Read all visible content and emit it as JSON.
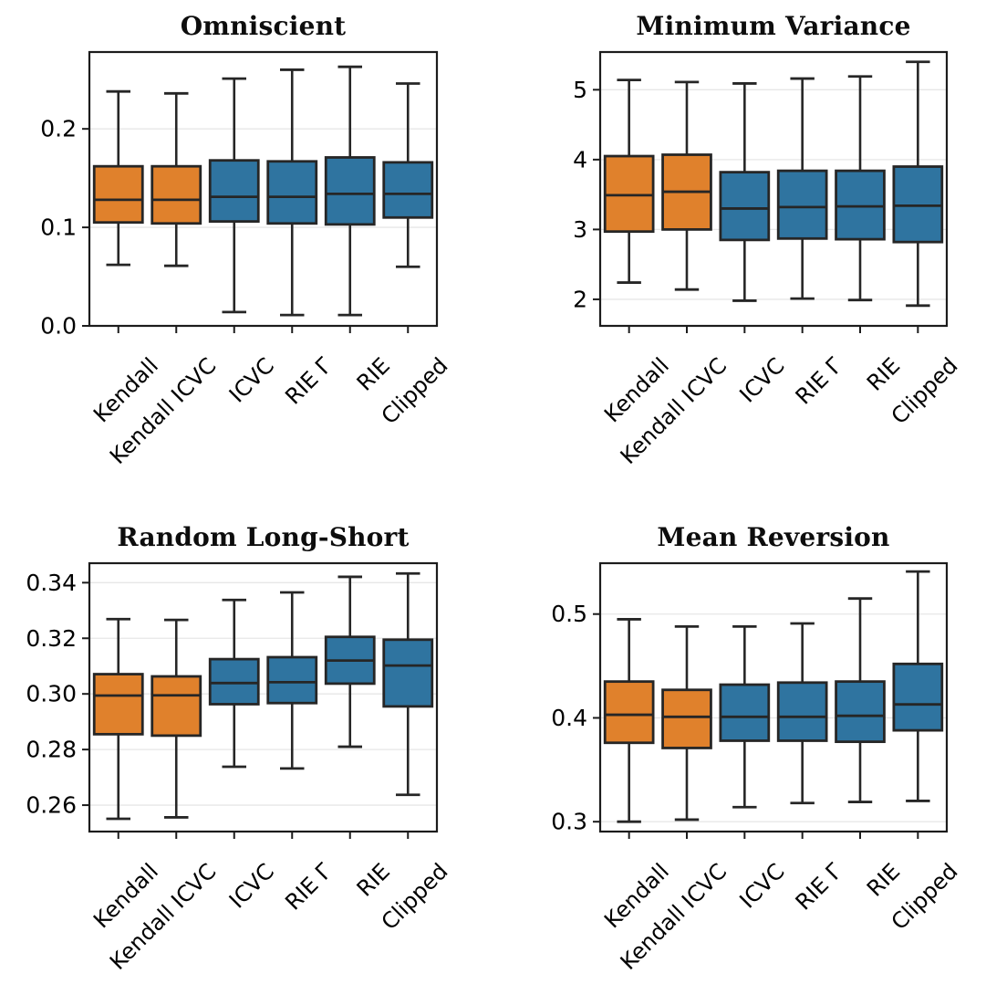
{
  "figure": {
    "background": "#ffffff",
    "kind": "2x2 grid of box plots"
  },
  "styles": {
    "orange": "#E0812C",
    "blue": "#2F74A0",
    "box_edge": "#262626",
    "grid_color": "#E7E7E7",
    "spine_color": "#1C1C1C",
    "tick_color": "#1C1C1C",
    "text_color": "#000000",
    "title_color": "#0D0D0D"
  },
  "categories": [
    "Kendall",
    "Kendall ICVC",
    "ICVC",
    "RIE Γ",
    "RIE",
    "Clipped"
  ],
  "chart_data": [
    {
      "type": "box",
      "title": "Omniscient",
      "xlabel": "",
      "ylabel": "",
      "grid": true,
      "legend": "none",
      "ylim": [
        0.0,
        0.278
      ],
      "yticks": [
        0.0,
        0.1,
        0.2
      ],
      "ytick_labels": [
        "0.0",
        "0.1",
        "0.2"
      ],
      "categories": [
        "Kendall",
        "Kendall ICVC",
        "ICVC",
        "RIE Γ",
        "RIE",
        "Clipped"
      ],
      "series": [
        {
          "name": "Kendall",
          "color": "orange",
          "whislo": 0.062,
          "q1": 0.105,
          "med": 0.128,
          "q3": 0.162,
          "whishi": 0.238
        },
        {
          "name": "Kendall ICVC",
          "color": "orange",
          "whislo": 0.061,
          "q1": 0.104,
          "med": 0.128,
          "q3": 0.162,
          "whishi": 0.236
        },
        {
          "name": "ICVC",
          "color": "blue",
          "whislo": 0.014,
          "q1": 0.106,
          "med": 0.131,
          "q3": 0.168,
          "whishi": 0.251
        },
        {
          "name": "RIE Γ",
          "color": "blue",
          "whislo": 0.011,
          "q1": 0.104,
          "med": 0.131,
          "q3": 0.167,
          "whishi": 0.26
        },
        {
          "name": "RIE",
          "color": "blue",
          "whislo": 0.011,
          "q1": 0.103,
          "med": 0.134,
          "q3": 0.171,
          "whishi": 0.263
        },
        {
          "name": "Clipped",
          "color": "blue",
          "whislo": 0.06,
          "q1": 0.11,
          "med": 0.134,
          "q3": 0.166,
          "whishi": 0.246
        }
      ]
    },
    {
      "type": "box",
      "title": "Minimum Variance",
      "xlabel": "",
      "ylabel": "",
      "grid": true,
      "legend": "none",
      "ylim": [
        1.62,
        5.54
      ],
      "yticks": [
        2,
        3,
        4,
        5
      ],
      "ytick_labels": [
        "2",
        "3",
        "4",
        "5"
      ],
      "categories": [
        "Kendall",
        "Kendall ICVC",
        "ICVC",
        "RIE Γ",
        "RIE",
        "Clipped"
      ],
      "series": [
        {
          "name": "Kendall",
          "color": "orange",
          "whislo": 2.24,
          "q1": 2.97,
          "med": 3.49,
          "q3": 4.05,
          "whishi": 5.14
        },
        {
          "name": "Kendall ICVC",
          "color": "orange",
          "whislo": 2.14,
          "q1": 3.0,
          "med": 3.54,
          "q3": 4.07,
          "whishi": 5.11
        },
        {
          "name": "ICVC",
          "color": "blue",
          "whislo": 1.98,
          "q1": 2.85,
          "med": 3.3,
          "q3": 3.82,
          "whishi": 5.09
        },
        {
          "name": "RIE Γ",
          "color": "blue",
          "whislo": 2.01,
          "q1": 2.87,
          "med": 3.32,
          "q3": 3.84,
          "whishi": 5.16
        },
        {
          "name": "RIE",
          "color": "blue",
          "whislo": 1.99,
          "q1": 2.86,
          "med": 3.33,
          "q3": 3.84,
          "whishi": 5.19
        },
        {
          "name": "Clipped",
          "color": "blue",
          "whislo": 1.91,
          "q1": 2.82,
          "med": 3.34,
          "q3": 3.9,
          "whishi": 5.4
        }
      ]
    },
    {
      "type": "box",
      "title": "Random Long-Short",
      "xlabel": "",
      "ylabel": "",
      "grid": true,
      "legend": "none",
      "ylim": [
        0.2505,
        0.347
      ],
      "yticks": [
        0.26,
        0.28,
        0.3,
        0.32,
        0.34
      ],
      "ytick_labels": [
        "0.26",
        "0.28",
        "0.30",
        "0.32",
        "0.34"
      ],
      "categories": [
        "Kendall",
        "Kendall ICVC",
        "ICVC",
        "RIE Γ",
        "RIE",
        "Clipped"
      ],
      "series": [
        {
          "name": "Kendall",
          "color": "orange",
          "whislo": 0.2551,
          "q1": 0.2855,
          "med": 0.2994,
          "q3": 0.3071,
          "whishi": 0.3269
        },
        {
          "name": "Kendall ICVC",
          "color": "orange",
          "whislo": 0.2556,
          "q1": 0.285,
          "med": 0.2995,
          "q3": 0.3063,
          "whishi": 0.3266
        },
        {
          "name": "ICVC",
          "color": "blue",
          "whislo": 0.2738,
          "q1": 0.2963,
          "med": 0.3039,
          "q3": 0.3125,
          "whishi": 0.3338
        },
        {
          "name": "RIE Γ",
          "color": "blue",
          "whislo": 0.2732,
          "q1": 0.2967,
          "med": 0.3042,
          "q3": 0.3132,
          "whishi": 0.3365
        },
        {
          "name": "RIE",
          "color": "blue",
          "whislo": 0.281,
          "q1": 0.3037,
          "med": 0.312,
          "q3": 0.3205,
          "whishi": 0.3421
        },
        {
          "name": "Clipped",
          "color": "blue",
          "whislo": 0.2637,
          "q1": 0.2955,
          "med": 0.3102,
          "q3": 0.3195,
          "whishi": 0.3433
        }
      ]
    },
    {
      "type": "box",
      "title": "Mean Reversion",
      "xlabel": "",
      "ylabel": "",
      "grid": true,
      "legend": "none",
      "ylim": [
        0.2905,
        0.549
      ],
      "yticks": [
        0.3,
        0.4,
        0.5
      ],
      "ytick_labels": [
        "0.3",
        "0.4",
        "0.5"
      ],
      "categories": [
        "Kendall",
        "Kendall ICVC",
        "ICVC",
        "RIE Γ",
        "RIE",
        "Clipped"
      ],
      "series": [
        {
          "name": "Kendall",
          "color": "orange",
          "whislo": 0.3,
          "q1": 0.376,
          "med": 0.403,
          "q3": 0.435,
          "whishi": 0.495
        },
        {
          "name": "Kendall ICVC",
          "color": "orange",
          "whislo": 0.302,
          "q1": 0.371,
          "med": 0.401,
          "q3": 0.427,
          "whishi": 0.488
        },
        {
          "name": "ICVC",
          "color": "blue",
          "whislo": 0.314,
          "q1": 0.378,
          "med": 0.401,
          "q3": 0.432,
          "whishi": 0.488
        },
        {
          "name": "RIE Γ",
          "color": "blue",
          "whislo": 0.318,
          "q1": 0.378,
          "med": 0.401,
          "q3": 0.434,
          "whishi": 0.491
        },
        {
          "name": "RIE",
          "color": "blue",
          "whislo": 0.319,
          "q1": 0.377,
          "med": 0.402,
          "q3": 0.435,
          "whishi": 0.515
        },
        {
          "name": "Clipped",
          "color": "blue",
          "whislo": 0.32,
          "q1": 0.388,
          "med": 0.413,
          "q3": 0.452,
          "whishi": 0.541
        }
      ]
    }
  ]
}
